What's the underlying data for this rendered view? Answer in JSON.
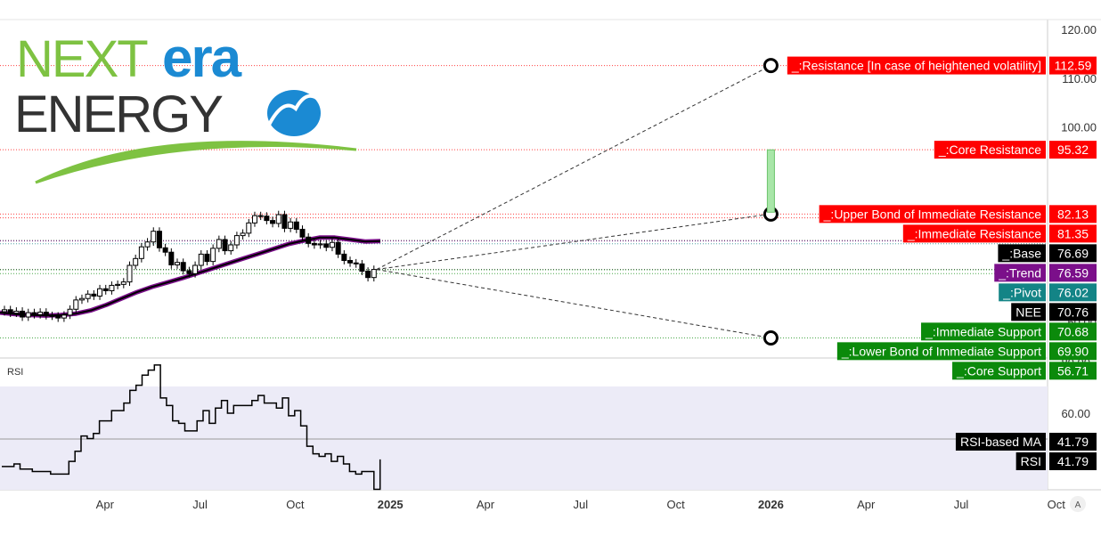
{
  "logo": {
    "line1_a": "NEXT",
    "line1_b": "era",
    "line2": "ENERGY"
  },
  "price_pane": {
    "axis_ticks": [
      "120.00",
      "110.00",
      "100.00",
      "60.00"
    ],
    "levels": [
      {
        "label": "_:Resistance [In case of heightened volatility]",
        "value": "112.59",
        "color": "#ff0000"
      },
      {
        "label": "_:Core Resistance",
        "value": "95.32",
        "color": "#ff0000"
      },
      {
        "label": "_:Upper Bond of Immediate Resistance",
        "value": "82.13",
        "color": "#ff0000"
      },
      {
        "label": "_:Immediate Resistance",
        "value": "81.35",
        "color": "#ff0000"
      },
      {
        "label": "_:Base",
        "value": "76.69",
        "color": "#000000"
      },
      {
        "label": "_:Trend",
        "value": "76.59",
        "color": "#7b0f8a"
      },
      {
        "label": "_:Pivot",
        "value": "76.02",
        "color": "#138486"
      },
      {
        "label": "NEE",
        "value": "70.76",
        "color": "#000000"
      },
      {
        "label": "_:Immediate Support",
        "value": "70.68",
        "color": "#0b8a0b"
      },
      {
        "label": "_:Lower Bond of Immediate Support",
        "value": "69.90",
        "color": "#0b8a0b"
      },
      {
        "label": "_:Core Support",
        "value": "56.71",
        "color": "#0b8a0b"
      }
    ]
  },
  "rsi_pane": {
    "title": "RSI",
    "axis_ticks": [
      "80.00",
      "60.00"
    ],
    "labels": [
      {
        "label": "RSI-based MA",
        "value": "41.79",
        "color": "#000000"
      },
      {
        "label": "RSI",
        "value": "41.79",
        "color": "#000000"
      }
    ]
  },
  "time_axis": [
    "Apr",
    "Jul",
    "Oct",
    "2025",
    "Apr",
    "Jul",
    "Oct",
    "2026",
    "Apr",
    "Jul",
    "Oct"
  ],
  "corner_button": "A",
  "colors": {
    "candle_up": "#ffffff",
    "candle_down": "#000000",
    "ma_outer": "#7b0f8a",
    "ma_inner": "#000000",
    "rsi_band": "#ecebf7",
    "projection_box": "#a8e6a8"
  },
  "chart_data": {
    "type": "candlestick",
    "symbol": "NEE",
    "x_range": [
      "2024-01",
      "2026-10"
    ],
    "ylim": [
      55,
      122
    ],
    "closes": [
      62.5,
      61.8,
      62.2,
      61.0,
      61.9,
      61.5,
      62.0,
      61.3,
      61.2,
      60.8,
      61.4,
      62.6,
      64.5,
      64.8,
      65.7,
      65.3,
      66.8,
      66.4,
      67.5,
      67.7,
      68.2,
      71.6,
      73.0,
      75.4,
      76.4,
      78.6,
      75.2,
      74.3,
      71.7,
      72.2,
      70.5,
      69.9,
      71.6,
      73.9,
      72.4,
      75.1,
      76.9,
      74.6,
      75.8,
      77.7,
      78.2,
      80.3,
      81.8,
      81.7,
      80.8,
      80.2,
      82.0,
      79.2,
      80.5,
      79.0,
      77.4,
      76.1,
      75.8,
      76.0,
      75.3,
      76.3,
      73.9,
      72.6,
      72.1,
      71.9,
      70.4,
      69.1,
      70.76
    ],
    "moving_average": {
      "name": "_:Trend",
      "values": [
        61.9,
        61.6,
        61.4,
        61.3,
        61.4,
        61.7,
        62.4,
        63.5,
        64.8,
        66.1,
        67.2,
        68.1,
        69.0,
        70.0,
        71.0,
        72.0,
        73.0,
        74.0,
        75.0,
        76.0,
        76.7,
        77.3,
        77.3,
        76.9,
        76.5,
        76.59
      ]
    },
    "projections": [
      {
        "target_date": "2026-01",
        "value": 112.59
      },
      {
        "target_date": "2026-01",
        "value": 82.13
      },
      {
        "target_date": "2026-01",
        "value": 56.71
      }
    ],
    "rsi": {
      "ylim": [
        22,
        82
      ],
      "band": [
        30,
        70
      ],
      "ma_value": 41.79,
      "values": [
        39,
        39,
        40,
        38,
        38,
        37,
        37,
        37,
        36,
        36,
        36,
        41,
        45,
        51,
        50,
        52,
        57,
        57,
        61,
        61,
        64,
        69,
        71,
        75,
        77,
        79,
        66,
        63,
        57,
        56,
        53,
        53,
        57,
        61,
        56,
        62,
        65,
        60,
        63,
        63,
        63,
        65,
        67,
        64,
        64,
        62,
        66,
        59,
        61,
        55,
        47,
        44,
        43,
        44,
        41,
        43,
        40,
        37,
        36,
        37,
        37,
        30,
        41.79
      ]
    }
  }
}
